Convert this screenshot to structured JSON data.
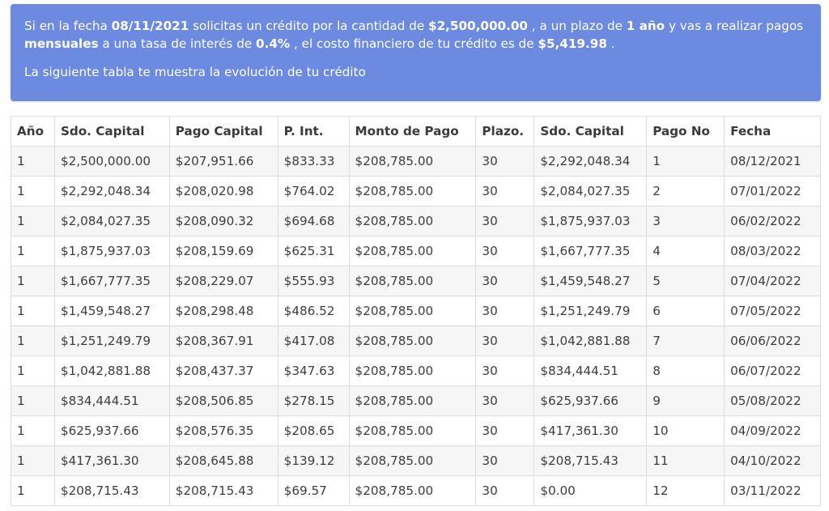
{
  "summary": {
    "p1": "Si en la fecha ",
    "date": "08/11/2021",
    "p2": " solicitas un crédito por la cantidad de ",
    "amount": "$2,500,000.00",
    "p3": " , a un plazo de ",
    "term": "1 año",
    "p4": " y vas a realizar pagos ",
    "frequency": "mensuales",
    "p5": " a una tasa de interés de ",
    "rate": "0.4%",
    "p6": " , el costo financiero de tu crédito es de ",
    "cost": "$5,419.98",
    "p7": " .",
    "subtitle": "La siguiente tabla te muestra la evolución de tu crédito"
  },
  "table": {
    "headers": [
      "Año",
      "Sdo. Capital",
      "Pago Capital",
      "P. Int.",
      "Monto de Pago",
      "Plazo.",
      "Sdo. Capital",
      "Pago No",
      "Fecha"
    ],
    "rows": [
      [
        "1",
        "$2,500,000.00",
        "$207,951.66",
        "$833.33",
        "$208,785.00",
        "30",
        "$2,292,048.34",
        "1",
        "08/12/2021"
      ],
      [
        "1",
        "$2,292,048.34",
        "$208,020.98",
        "$764.02",
        "$208,785.00",
        "30",
        "$2,084,027.35",
        "2",
        "07/01/2022"
      ],
      [
        "1",
        "$2,084,027.35",
        "$208,090.32",
        "$694.68",
        "$208,785.00",
        "30",
        "$1,875,937.03",
        "3",
        "06/02/2022"
      ],
      [
        "1",
        "$1,875,937.03",
        "$208,159.69",
        "$625.31",
        "$208,785.00",
        "30",
        "$1,667,777.35",
        "4",
        "08/03/2022"
      ],
      [
        "1",
        "$1,667,777.35",
        "$208,229.07",
        "$555.93",
        "$208,785.00",
        "30",
        "$1,459,548.27",
        "5",
        "07/04/2022"
      ],
      [
        "1",
        "$1,459,548.27",
        "$208,298.48",
        "$486.52",
        "$208,785.00",
        "30",
        "$1,251,249.79",
        "6",
        "07/05/2022"
      ],
      [
        "1",
        "$1,251,249.79",
        "$208,367.91",
        "$417.08",
        "$208,785.00",
        "30",
        "$1,042,881.88",
        "7",
        "06/06/2022"
      ],
      [
        "1",
        "$1,042,881.88",
        "$208,437.37",
        "$347.63",
        "$208,785.00",
        "30",
        "$834,444.51",
        "8",
        "06/07/2022"
      ],
      [
        "1",
        "$834,444.51",
        "$208,506.85",
        "$278.15",
        "$208,785.00",
        "30",
        "$625,937.66",
        "9",
        "05/08/2022"
      ],
      [
        "1",
        "$625,937.66",
        "$208,576.35",
        "$208.65",
        "$208,785.00",
        "30",
        "$417,361.30",
        "10",
        "04/09/2022"
      ],
      [
        "1",
        "$417,361.30",
        "$208,645.88",
        "$139.12",
        "$208,785.00",
        "30",
        "$208,715.43",
        "11",
        "04/10/2022"
      ],
      [
        "1",
        "$208,715.43",
        "$208,715.43",
        "$69.57",
        "$208,785.00",
        "30",
        "$0.00",
        "12",
        "03/11/2022"
      ]
    ]
  },
  "colors": {
    "banner_bg": "#6b8ae0",
    "banner_text": "#ffffff",
    "row_stripe": "#f6f6f6",
    "border": "#dcdcdc"
  }
}
